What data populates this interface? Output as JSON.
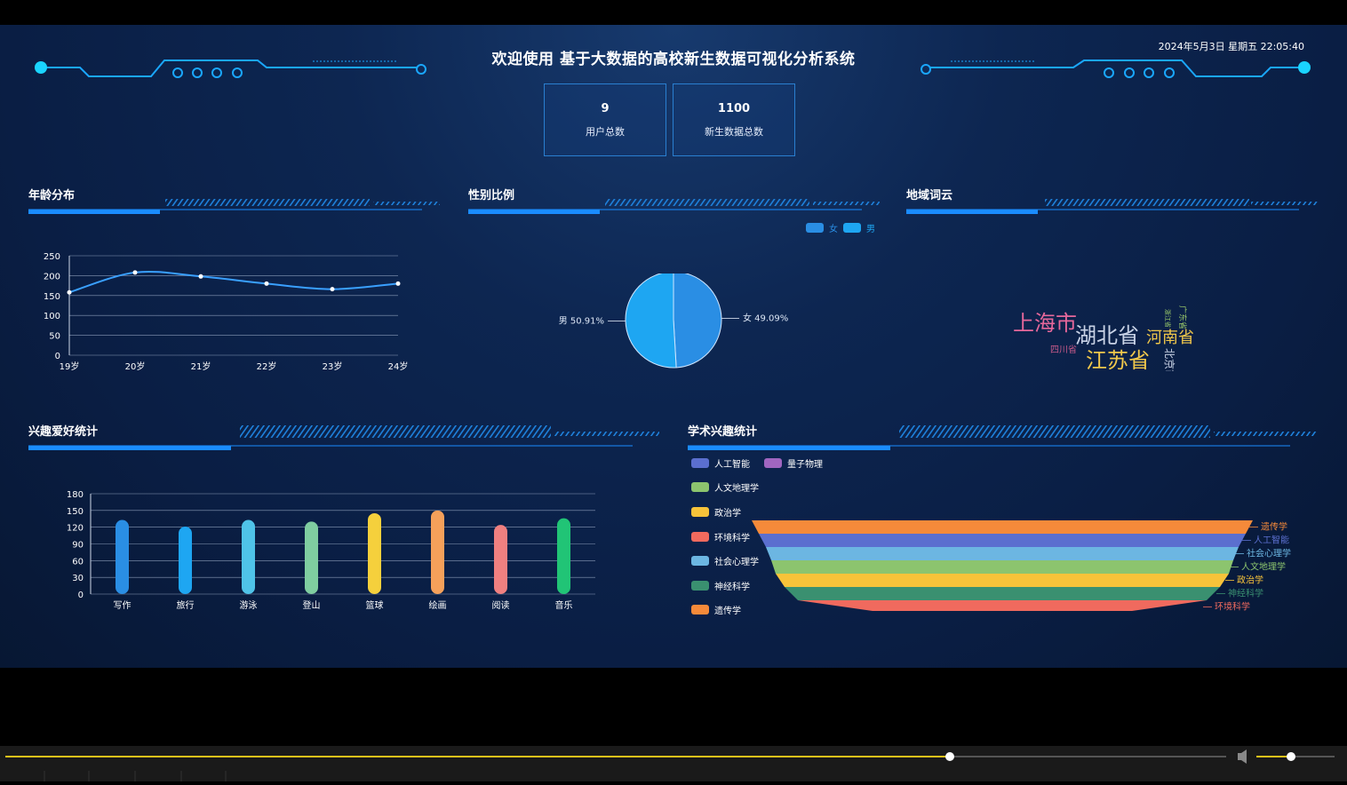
{
  "header": {
    "title": "欢迎使用 基于大数据的高校新生数据可视化分析系统",
    "datetime": "2024年5月3日 星期五 22:05:40"
  },
  "stats": [
    {
      "value": "9",
      "label": "用户总数"
    },
    {
      "value": "1100",
      "label": "新生数据总数"
    }
  ],
  "panels": {
    "age": {
      "title": "年龄分布"
    },
    "gender": {
      "title": "性别比例"
    },
    "region": {
      "title": "地域词云"
    },
    "hobby": {
      "title": "兴趣爱好统计"
    },
    "academic": {
      "title": "学术兴趣统计"
    }
  },
  "chart_data": [
    {
      "id": "age",
      "type": "line",
      "categories": [
        "19岁",
        "20岁",
        "21岁",
        "22岁",
        "23岁",
        "24岁"
      ],
      "values": [
        158,
        208,
        198,
        180,
        166,
        180
      ],
      "ylim": [
        0,
        250
      ],
      "yticks": [
        0,
        50,
        100,
        150,
        200,
        250
      ],
      "grid": true,
      "color": "#3aa0ff"
    },
    {
      "id": "gender",
      "type": "pie",
      "legend": [
        "女",
        "男"
      ],
      "legend_position": "top-right",
      "slices": [
        {
          "name": "女",
          "value": 49.09,
          "label": "女 49.09%",
          "color": "#2a8ee4"
        },
        {
          "name": "男",
          "value": 50.91,
          "label": "男 50.91%",
          "color": "#1ea6f2"
        }
      ]
    },
    {
      "id": "hobby",
      "type": "bar",
      "categories": [
        "写作",
        "旅行",
        "游泳",
        "登山",
        "篮球",
        "绘画",
        "阅读",
        "音乐"
      ],
      "values": [
        133,
        121,
        133,
        130,
        145,
        150,
        124,
        136
      ],
      "colors": [
        "#2a8ee4",
        "#1ea6f2",
        "#4fc3e8",
        "#7fcda0",
        "#f5d03c",
        "#f5a05a",
        "#f08080",
        "#21c476"
      ],
      "ylim": [
        0,
        180
      ],
      "yticks": [
        0,
        30,
        60,
        90,
        120,
        150,
        180
      ],
      "grid": true
    },
    {
      "id": "academic",
      "type": "funnel",
      "legend_position": "left",
      "legend": [
        {
          "name": "人工智能",
          "color": "#5b6fcf"
        },
        {
          "name": "量子物理",
          "color": "#a066c0"
        },
        {
          "name": "人文地理学",
          "color": "#8cc46e"
        },
        {
          "name": "政治学",
          "color": "#f7c33a"
        },
        {
          "name": "环境科学",
          "color": "#f06a5e"
        },
        {
          "name": "社会心理学",
          "color": "#6cb6e2"
        },
        {
          "name": "神经科学",
          "color": "#3a9070"
        },
        {
          "name": "遗传学",
          "color": "#f58a3a"
        }
      ],
      "order": [
        "遗传学",
        "人工智能",
        "社会心理学",
        "人文地理学",
        "政治学",
        "神经科学",
        "环境科学",
        "量子物理"
      ]
    }
  ],
  "wordcloud": [
    {
      "text": "上海市",
      "color": "#e7689b"
    },
    {
      "text": "湖北省",
      "color": "#c9d3e6"
    },
    {
      "text": "河南省",
      "color": "#f2c84b"
    },
    {
      "text": "江苏省",
      "color": "#f2c84b"
    },
    {
      "text": "四川省",
      "color": "#c85a8a"
    },
    {
      "text": "北京市",
      "color": "#c9d3e6"
    },
    {
      "text": "广东省",
      "color": "#9ac96a"
    },
    {
      "text": "浙江省",
      "color": "#9ac96a"
    }
  ]
}
